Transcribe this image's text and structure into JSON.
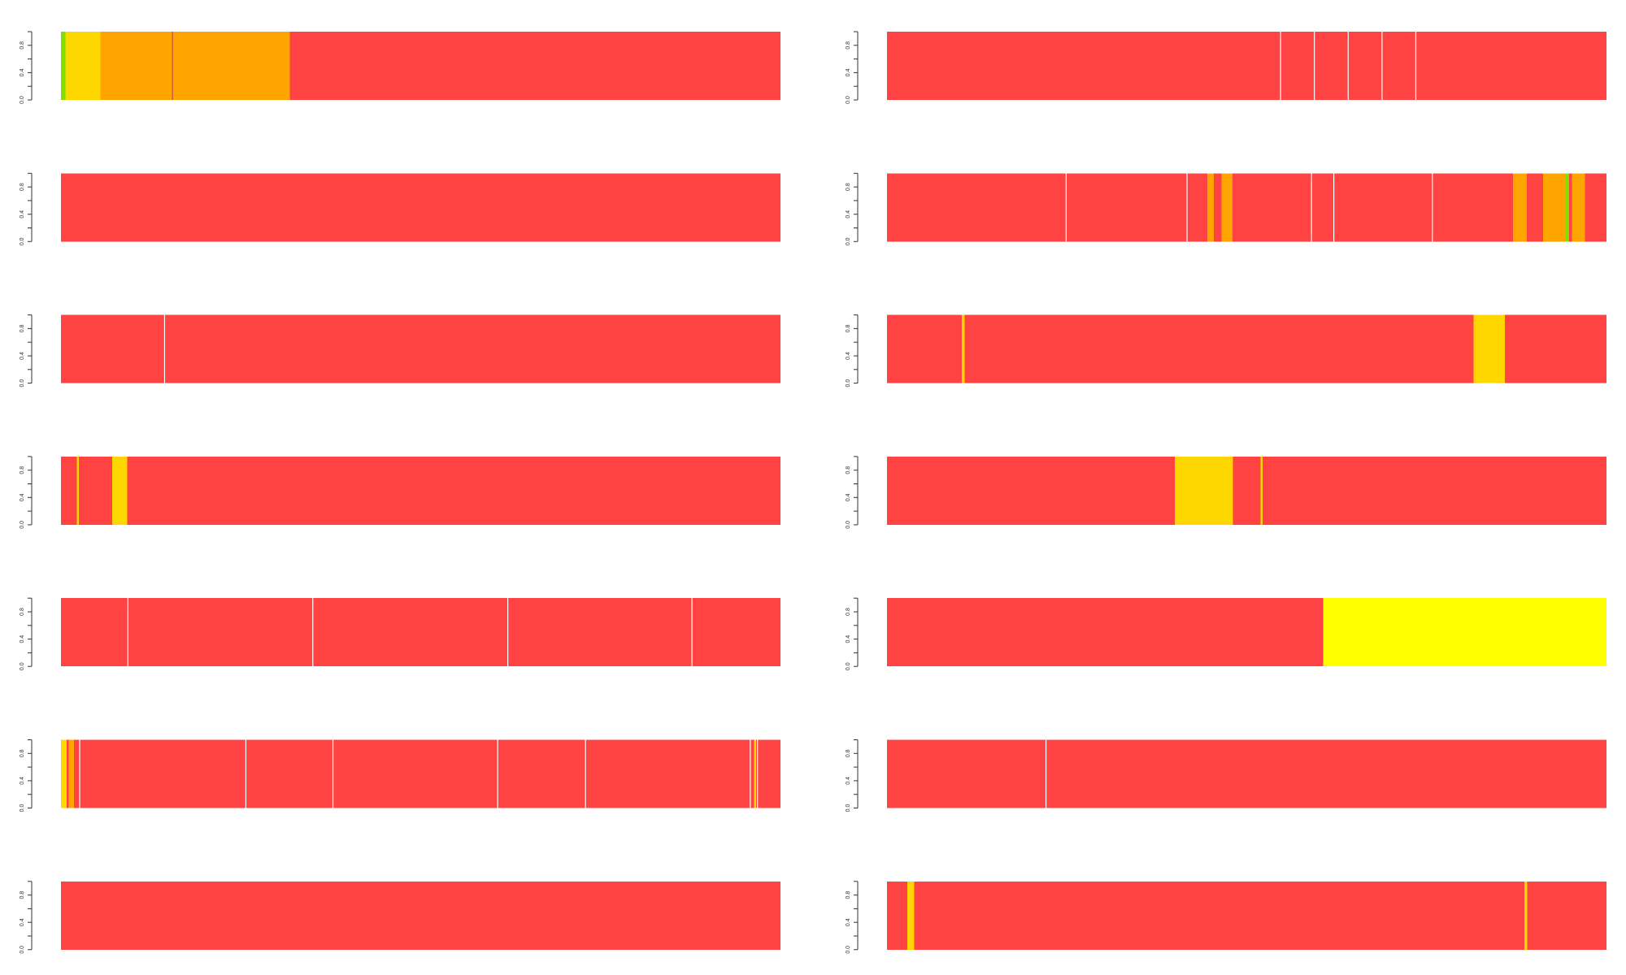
{
  "chart_data": {
    "type": "stacked-bar",
    "layout": {
      "columns": 2,
      "rows": 7
    },
    "axis": {
      "ylim": [
        0,
        1
      ],
      "ticks": [
        "0.0",
        "0.4",
        "0.8"
      ],
      "grid": false
    },
    "colors": {
      "red": "#ff4242",
      "yellow": "#ffd700",
      "orange": "#ffa500",
      "green": "#7fe000",
      "brightYellow": "#ffff00",
      "separator": "#ffffff",
      "orangeSeparator": "#c04c4c"
    },
    "panels": [
      {
        "name": "panel-1",
        "segments": [
          {
            "x0": 0.0,
            "x1": 0.006,
            "color": "green"
          },
          {
            "x0": 0.006,
            "x1": 0.055,
            "color": "yellow"
          },
          {
            "x0": 0.055,
            "x1": 0.155,
            "color": "orange"
          },
          {
            "x0": 0.155,
            "x1": 0.318,
            "color": "orange"
          },
          {
            "x0": 0.318,
            "x1": 1.0,
            "color": "red"
          }
        ],
        "separators": [
          {
            "x": 0.155,
            "color": "orangeSeparator"
          }
        ]
      },
      {
        "name": "panel-2",
        "segments": [
          {
            "x0": 0.0,
            "x1": 1.0,
            "color": "red"
          }
        ],
        "separators": [
          {
            "x": 0.547
          },
          {
            "x": 0.594
          },
          {
            "x": 0.641
          },
          {
            "x": 0.688
          },
          {
            "x": 0.735
          }
        ]
      },
      {
        "name": "panel-3",
        "segments": [
          {
            "x0": 0.0,
            "x1": 1.0,
            "color": "red"
          }
        ],
        "separators": []
      },
      {
        "name": "panel-4",
        "segments": [
          {
            "x0": 0.0,
            "x1": 0.417,
            "color": "red"
          },
          {
            "x0": 0.417,
            "x1": 0.452,
            "color": "red"
          },
          {
            "x0": 0.445,
            "x1": 0.454,
            "color": "orange"
          },
          {
            "x0": 0.454,
            "x1": 0.465,
            "color": "red"
          },
          {
            "x0": 0.465,
            "x1": 0.48,
            "color": "orange"
          },
          {
            "x0": 0.48,
            "x1": 0.87,
            "color": "red"
          },
          {
            "x0": 0.87,
            "x1": 0.889,
            "color": "orange"
          },
          {
            "x0": 0.889,
            "x1": 0.912,
            "color": "red"
          },
          {
            "x0": 0.912,
            "x1": 0.943,
            "color": "orange"
          },
          {
            "x0": 0.943,
            "x1": 0.948,
            "color": "green"
          },
          {
            "x0": 0.948,
            "x1": 0.952,
            "color": "red"
          },
          {
            "x0": 0.952,
            "x1": 0.97,
            "color": "orange"
          },
          {
            "x0": 0.97,
            "x1": 1.0,
            "color": "red"
          }
        ],
        "separators": [
          {
            "x": 0.249
          },
          {
            "x": 0.417
          },
          {
            "x": 0.59
          },
          {
            "x": 0.621
          },
          {
            "x": 0.758
          }
        ]
      },
      {
        "name": "panel-5",
        "segments": [
          {
            "x0": 0.0,
            "x1": 1.0,
            "color": "red"
          }
        ],
        "separators": [
          {
            "x": 0.144
          }
        ]
      },
      {
        "name": "panel-6",
        "segments": [
          {
            "x0": 0.0,
            "x1": 0.104,
            "color": "red"
          },
          {
            "x0": 0.104,
            "x1": 0.108,
            "color": "yellow"
          },
          {
            "x0": 0.108,
            "x1": 0.815,
            "color": "red"
          },
          {
            "x0": 0.815,
            "x1": 0.859,
            "color": "yellow"
          },
          {
            "x0": 0.859,
            "x1": 1.0,
            "color": "red"
          }
        ],
        "separators": []
      },
      {
        "name": "panel-7",
        "segments": [
          {
            "x0": 0.0,
            "x1": 0.022,
            "color": "red"
          },
          {
            "x0": 0.022,
            "x1": 0.025,
            "color": "yellow"
          },
          {
            "x0": 0.025,
            "x1": 0.071,
            "color": "red"
          },
          {
            "x0": 0.071,
            "x1": 0.092,
            "color": "yellow"
          },
          {
            "x0": 0.092,
            "x1": 1.0,
            "color": "red"
          }
        ],
        "separators": []
      },
      {
        "name": "panel-8",
        "segments": [
          {
            "x0": 0.0,
            "x1": 0.4,
            "color": "red"
          },
          {
            "x0": 0.4,
            "x1": 0.481,
            "color": "yellow"
          },
          {
            "x0": 0.481,
            "x1": 0.519,
            "color": "red"
          },
          {
            "x0": 0.519,
            "x1": 0.522,
            "color": "yellow"
          },
          {
            "x0": 0.522,
            "x1": 1.0,
            "color": "red"
          }
        ],
        "separators": []
      },
      {
        "name": "panel-9",
        "segments": [
          {
            "x0": 0.0,
            "x1": 1.0,
            "color": "red"
          }
        ],
        "separators": [
          {
            "x": 0.093
          },
          {
            "x": 0.35
          },
          {
            "x": 0.621
          },
          {
            "x": 0.877
          }
        ]
      },
      {
        "name": "panel-10",
        "segments": [
          {
            "x0": 0.0,
            "x1": 0.606,
            "color": "red"
          },
          {
            "x0": 0.606,
            "x1": 1.0,
            "color": "brightYellow"
          }
        ],
        "separators": []
      },
      {
        "name": "panel-11",
        "segments": [
          {
            "x0": 0.0,
            "x1": 0.008,
            "color": "yellow"
          },
          {
            "x0": 0.008,
            "x1": 0.011,
            "color": "red"
          },
          {
            "x0": 0.011,
            "x1": 0.018,
            "color": "orange"
          },
          {
            "x0": 0.018,
            "x1": 0.026,
            "color": "red"
          },
          {
            "x0": 0.026,
            "x1": 0.963,
            "color": "red"
          },
          {
            "x0": 0.963,
            "x1": 0.966,
            "color": "yellow"
          },
          {
            "x0": 0.966,
            "x1": 1.0,
            "color": "red"
          }
        ],
        "separators": [
          {
            "x": 0.026
          },
          {
            "x": 0.257
          },
          {
            "x": 0.378
          },
          {
            "x": 0.607
          },
          {
            "x": 0.729
          },
          {
            "x": 0.958
          },
          {
            "x": 0.968
          }
        ]
      },
      {
        "name": "panel-12",
        "segments": [
          {
            "x0": 0.0,
            "x1": 1.0,
            "color": "red"
          }
        ],
        "separators": [
          {
            "x": 0.221
          }
        ]
      },
      {
        "name": "panel-13",
        "segments": [
          {
            "x0": 0.0,
            "x1": 1.0,
            "color": "red"
          }
        ],
        "separators": []
      },
      {
        "name": "panel-14",
        "segments": [
          {
            "x0": 0.0,
            "x1": 0.028,
            "color": "red"
          },
          {
            "x0": 0.028,
            "x1": 0.038,
            "color": "yellow"
          },
          {
            "x0": 0.038,
            "x1": 0.886,
            "color": "red"
          },
          {
            "x0": 0.886,
            "x1": 0.89,
            "color": "yellow"
          },
          {
            "x0": 0.89,
            "x1": 1.0,
            "color": "red"
          }
        ],
        "separators": []
      }
    ]
  }
}
